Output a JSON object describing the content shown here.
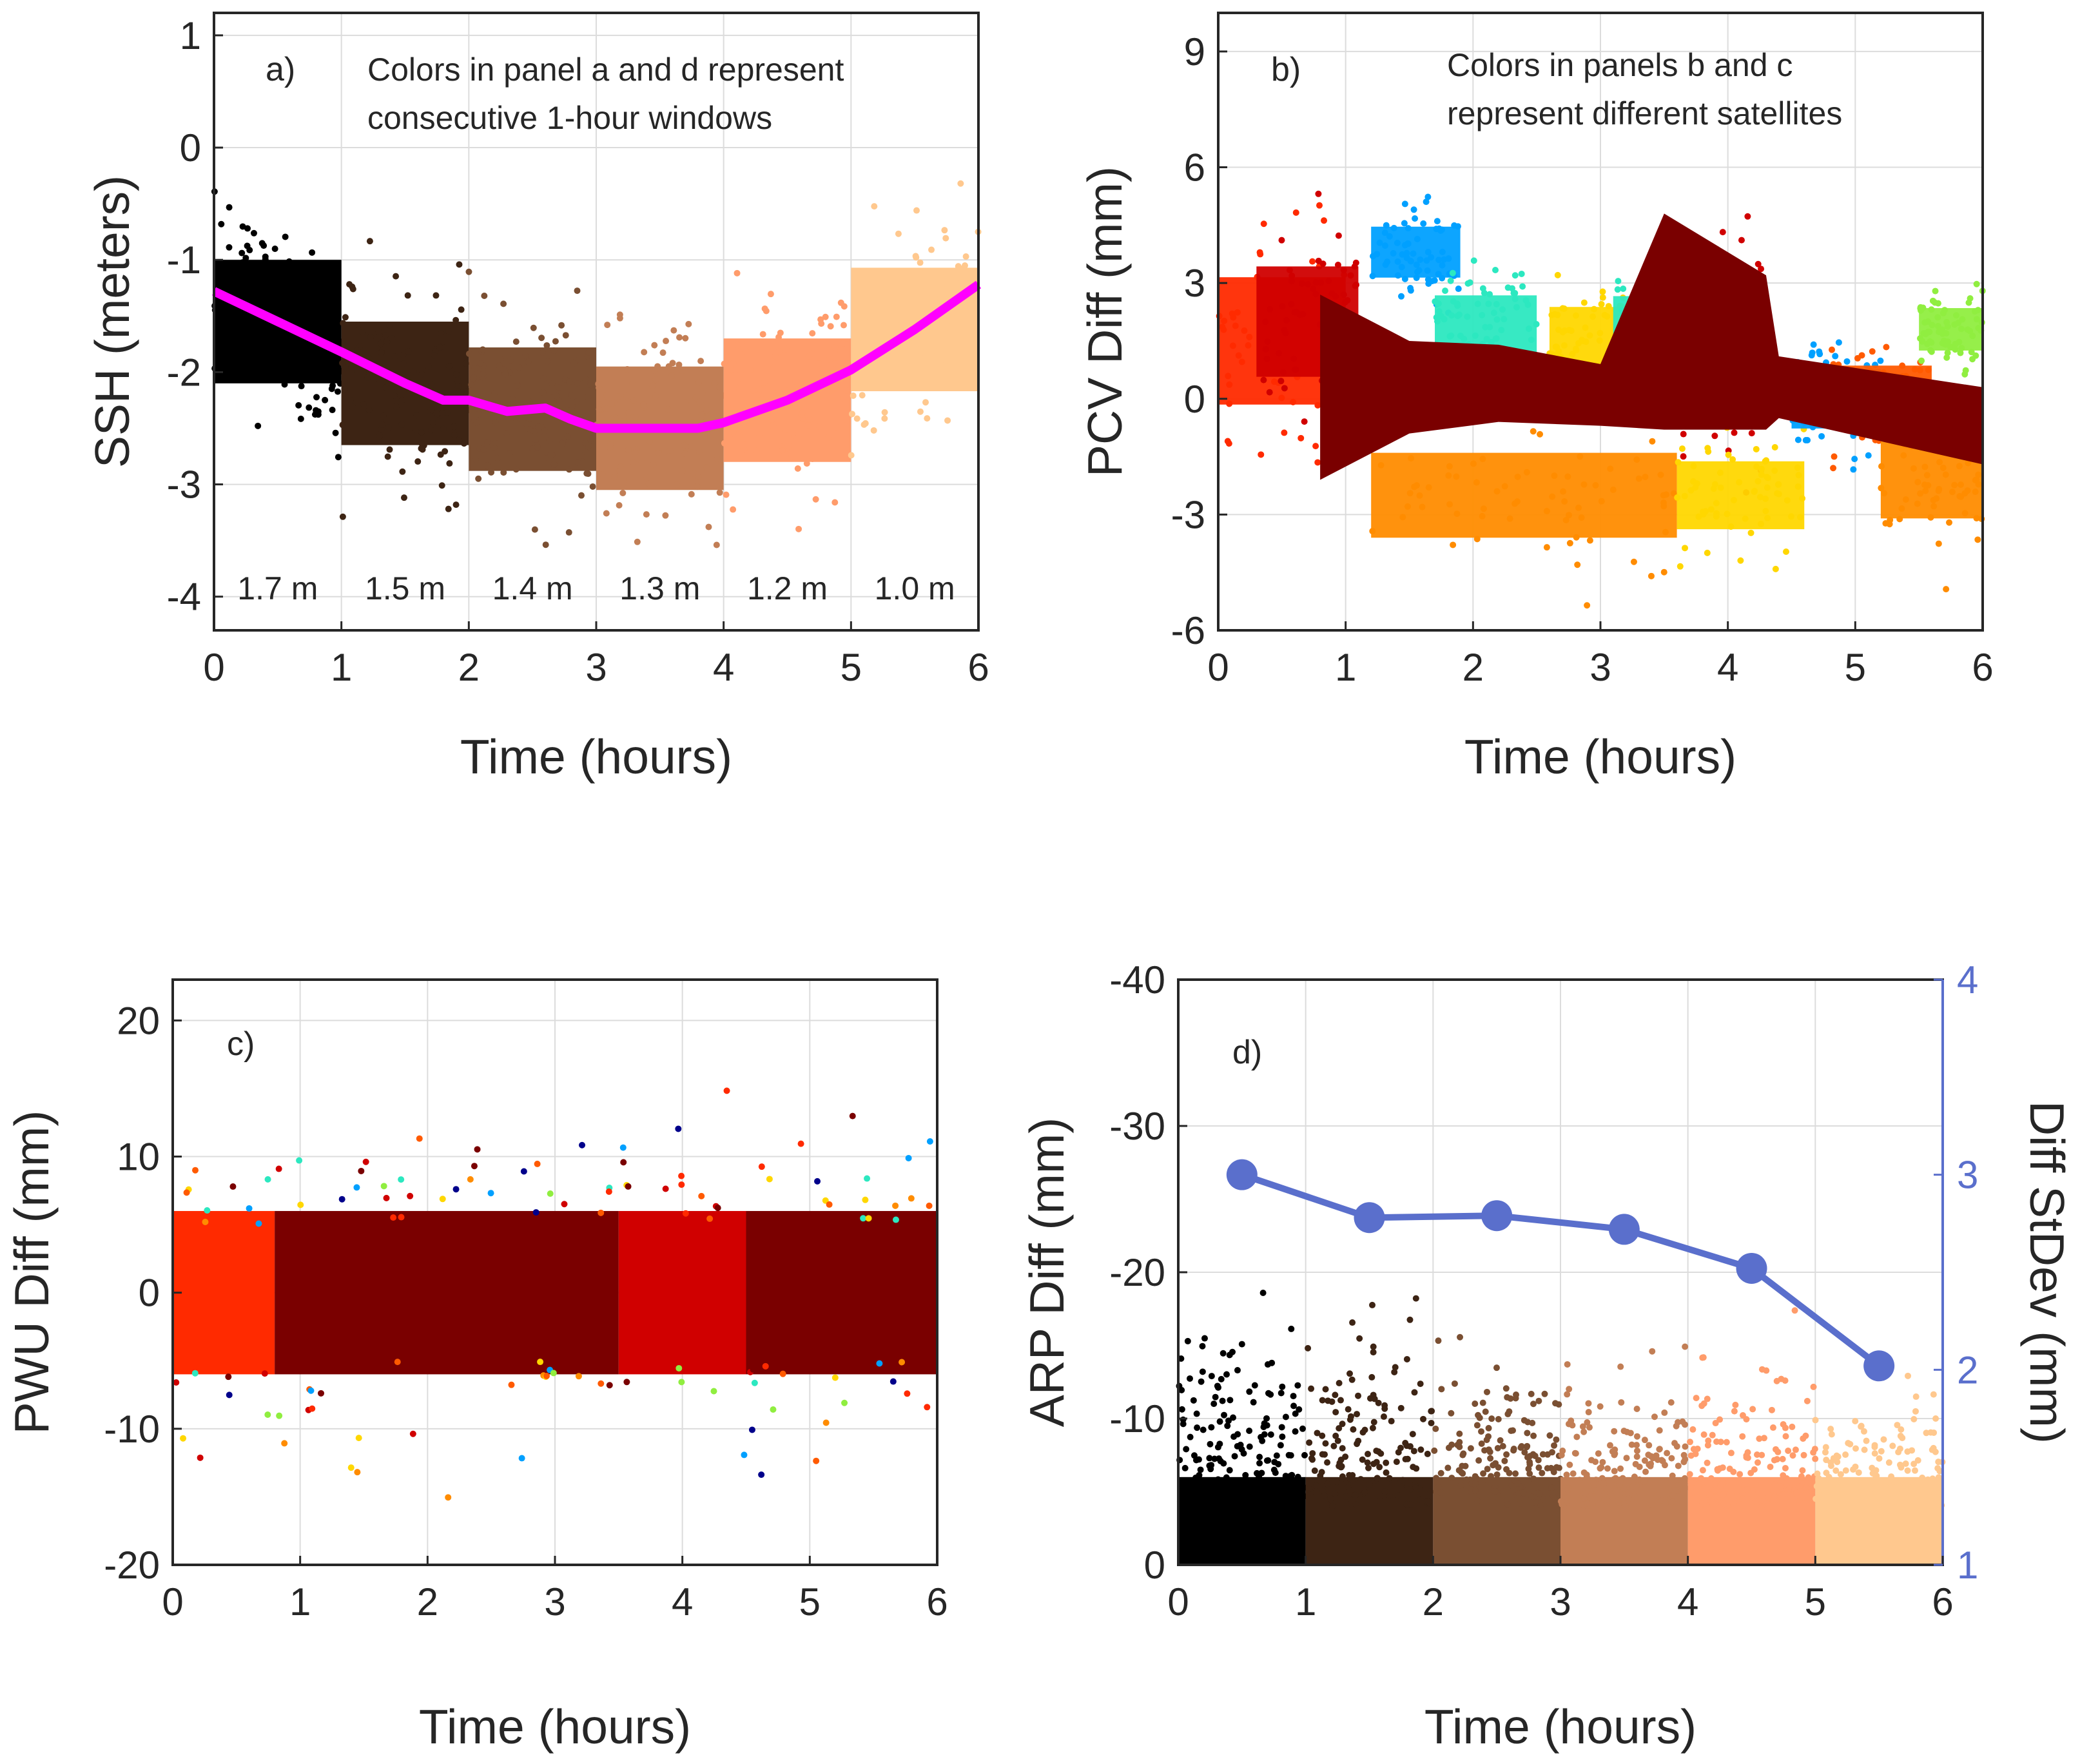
{
  "colors": {
    "magenta": "#ff00ff",
    "stdev_line": "#5a6fcc",
    "window_colors": [
      "#000000",
      "#3d2414",
      "#7a4f32",
      "#c27e55",
      "#ff9c6b",
      "#ffc88e"
    ],
    "satellite_colors": [
      "#ff2a00",
      "#d00000",
      "#7a0000",
      "#ff8c00",
      "#ffd700",
      "#00a0ff",
      "#2ce8c0",
      "#90ee40",
      "#00008b",
      "#ff5a00"
    ]
  },
  "chart_data": [
    {
      "id": "a",
      "type": "scatter",
      "panel_label": "a)",
      "annotation": [
        "Colors in panel a and d represent",
        "consecutive 1-hour windows"
      ],
      "xlabel": "Time (hours)",
      "ylabel": "SSH (meters)",
      "xlim": [
        0,
        6
      ],
      "ylim": [
        -4.3,
        1.2
      ],
      "xticks": [
        "0",
        "1",
        "2",
        "3",
        "4",
        "5",
        "6"
      ],
      "yticks": [
        "-4",
        "-3",
        "-2",
        "-1",
        "0",
        "1"
      ],
      "window_labels": [
        "1.7 m",
        "1.5 m",
        "1.4 m",
        "1.3 m",
        "1.2 m",
        "1.0 m"
      ],
      "mean_line": {
        "x": [
          0,
          0.5,
          1,
          1.5,
          1.8,
          2,
          2.3,
          2.5,
          2.6,
          2.8,
          3,
          3.5,
          3.8,
          4,
          4.5,
          5,
          5.5,
          6
        ],
        "y": [
          -1.28,
          -1.55,
          -1.82,
          -2.1,
          -2.25,
          -2.25,
          -2.35,
          -2.33,
          -2.32,
          -2.42,
          -2.5,
          -2.5,
          -2.5,
          -2.45,
          -2.25,
          -1.98,
          -1.62,
          -1.22
        ]
      }
    },
    {
      "id": "b",
      "type": "scatter",
      "panel_label": "b)",
      "annotation": [
        "Colors in panels b and c",
        "represent different satellites"
      ],
      "xlabel": "Time (hours)",
      "ylabel": "PCV Diff (mm)",
      "xlim": [
        0,
        6
      ],
      "ylim": [
        -6,
        10
      ],
      "xticks": [
        "0",
        "1",
        "2",
        "3",
        "4",
        "5",
        "6"
      ],
      "yticks": [
        "-6",
        "-3",
        "0",
        "3",
        "6",
        "9"
      ]
    },
    {
      "id": "c",
      "type": "scatter",
      "panel_label": "c)",
      "xlabel": "Time (hours)",
      "ylabel": "PWU Diff (mm)",
      "xlim": [
        0,
        6
      ],
      "ylim": [
        -20,
        23
      ],
      "xticks": [
        "0",
        "1",
        "2",
        "3",
        "4",
        "5",
        "6"
      ],
      "yticks": [
        "-20",
        "-10",
        "0",
        "10",
        "20"
      ]
    },
    {
      "id": "d",
      "type": "scatter",
      "panel_label": "d)",
      "xlabel": "Time (hours)",
      "ylabel": "ARP Diff (mm)",
      "ylabel_right": "Diff StDev (mm)",
      "xlim": [
        0,
        6
      ],
      "ylim": [
        0,
        -40
      ],
      "ylim_right": [
        1,
        4
      ],
      "xticks": [
        "0",
        "1",
        "2",
        "3",
        "4",
        "5",
        "6"
      ],
      "yticks": [
        "0",
        "-10",
        "-20",
        "-30",
        "-40"
      ],
      "yticks_right": [
        "1",
        "2",
        "3",
        "4"
      ],
      "stdev_series": {
        "x": [
          0.5,
          1.5,
          2.5,
          3.5,
          4.5,
          5.5
        ],
        "y": [
          3.0,
          2.78,
          2.79,
          2.72,
          2.52,
          2.02
        ]
      }
    }
  ]
}
